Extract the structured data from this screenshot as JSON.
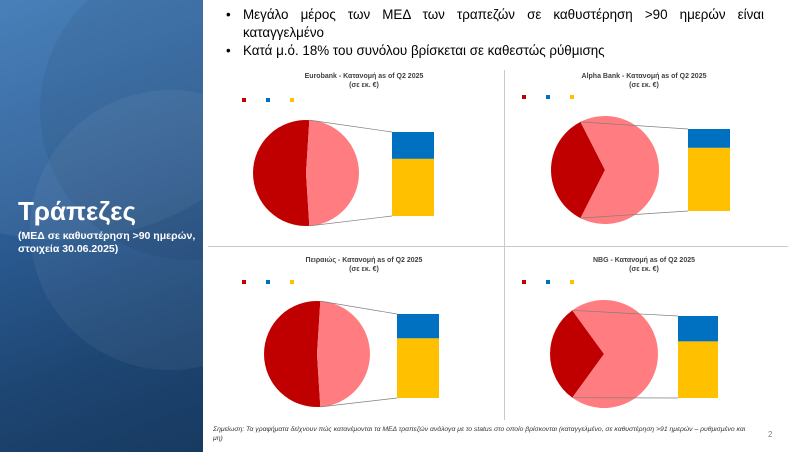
{
  "slide": {
    "title": "Τράπεζες",
    "subtitle": "(ΜΕΔ σε καθυστέρηση >90 ημερών, στοιχεία 30.06.2025)",
    "bullets": [
      "Μεγάλο μέρος των ΜΕΔ των τραπεζών σε καθυστέρηση >90 ημερών είναι καταγγελμένο",
      "Κατά μ.ό. 18% του συνόλου βρίσκεται σε καθεστώς ρύθμισης"
    ],
    "footnote": "Σημείωση: Τα γραφήματα δείχνουν πώς κατανέμονται τα ΜΕΔ τραπεζών ανάλογα με το status στο οποίο βρίσκονται (καταγγελμένο, σε καθυστέρηση >91 ημερών – ρυθμισμένο και μη)",
    "page_number": "2",
    "colors": {
      "panel": "#2d5f98",
      "slice_dark": "#c00000",
      "slice_light": "#ff7c80",
      "bar_blue": "#0070c0",
      "bar_yellow": "#ffc000"
    }
  },
  "chart_data": [
    {
      "type": "pie",
      "title": "Eurobank - Κατανομή as of Q2 2025",
      "subtitle": "(σε εκ. €)",
      "legend": [
        "",
        "",
        ""
      ],
      "pie": {
        "dark_share": 0.52,
        "light_share": 0.48
      },
      "pie_labels": {
        "dark": "",
        "light": ""
      },
      "bar": {
        "blue_share": 0.32,
        "yellow_share": 0.68
      },
      "bar_labels": {
        "blue": "",
        "yellow": ""
      }
    },
    {
      "type": "pie",
      "title": "Alpha Bank - Κατανομή as of Q2 2025",
      "subtitle": "(σε εκ. €)",
      "legend": [
        "",
        "",
        ""
      ],
      "pie": {
        "dark_share": 0.35,
        "light_share": 0.65
      },
      "pie_labels": {
        "dark": "",
        "light": ""
      },
      "bar": {
        "blue_share": 0.23,
        "yellow_share": 0.77
      },
      "bar_labels": {
        "blue": "",
        "yellow": ""
      }
    },
    {
      "type": "pie",
      "title": "Πειραιώς - Κατανομή as of Q2 2025",
      "subtitle": "(σε εκ. €)",
      "legend": [
        "",
        "",
        ""
      ],
      "pie": {
        "dark_share": 0.52,
        "light_share": 0.48
      },
      "pie_labels": {
        "dark": "",
        "light": ""
      },
      "bar": {
        "blue_share": 0.29,
        "yellow_share": 0.71
      },
      "bar_labels": {
        "blue": "",
        "yellow": ""
      }
    },
    {
      "type": "pie",
      "title": "NBG - Κατανομή as of Q2 2025",
      "subtitle": "(σε εκ. €)",
      "legend": [
        "",
        "",
        ""
      ],
      "pie": {
        "dark_share": 0.3,
        "light_share": 0.7
      },
      "pie_labels": {
        "dark": "",
        "light": ""
      },
      "bar": {
        "blue_share": 0.31,
        "yellow_share": 0.69
      },
      "bar_labels": {
        "blue": "",
        "yellow": ""
      }
    }
  ]
}
